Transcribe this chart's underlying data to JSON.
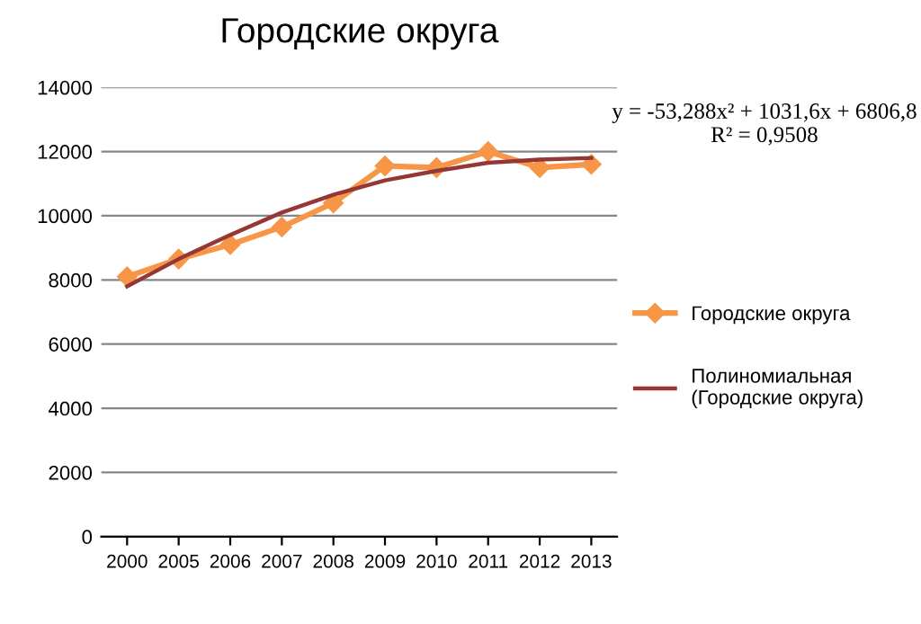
{
  "chart_data": {
    "type": "line",
    "title": "Городские округа",
    "categories": [
      "2000",
      "2005",
      "2006",
      "2007",
      "2008",
      "2009",
      "2010",
      "2011",
      "2012",
      "2013"
    ],
    "series": [
      {
        "name": "Городские округа",
        "color": "#f79646",
        "marker": "diamond",
        "values": [
          8100,
          8650,
          9100,
          9650,
          10400,
          11550,
          11500,
          12000,
          11500,
          11600
        ]
      },
      {
        "name": "Полиномиальная (Городские округа)",
        "color": "#953735",
        "marker": "none",
        "values": [
          7800,
          8650,
          9400,
          10100,
          10650,
          11100,
          11400,
          11650,
          11750,
          11800
        ]
      }
    ],
    "ylim": [
      0,
      14000
    ],
    "yticks": [
      0,
      2000,
      4000,
      6000,
      8000,
      10000,
      12000,
      14000
    ],
    "grid": "y",
    "legend": "right",
    "annotations": [
      "y = -53,288x² + 1031,6x + 6806,8",
      "R² = 0,9508"
    ]
  }
}
